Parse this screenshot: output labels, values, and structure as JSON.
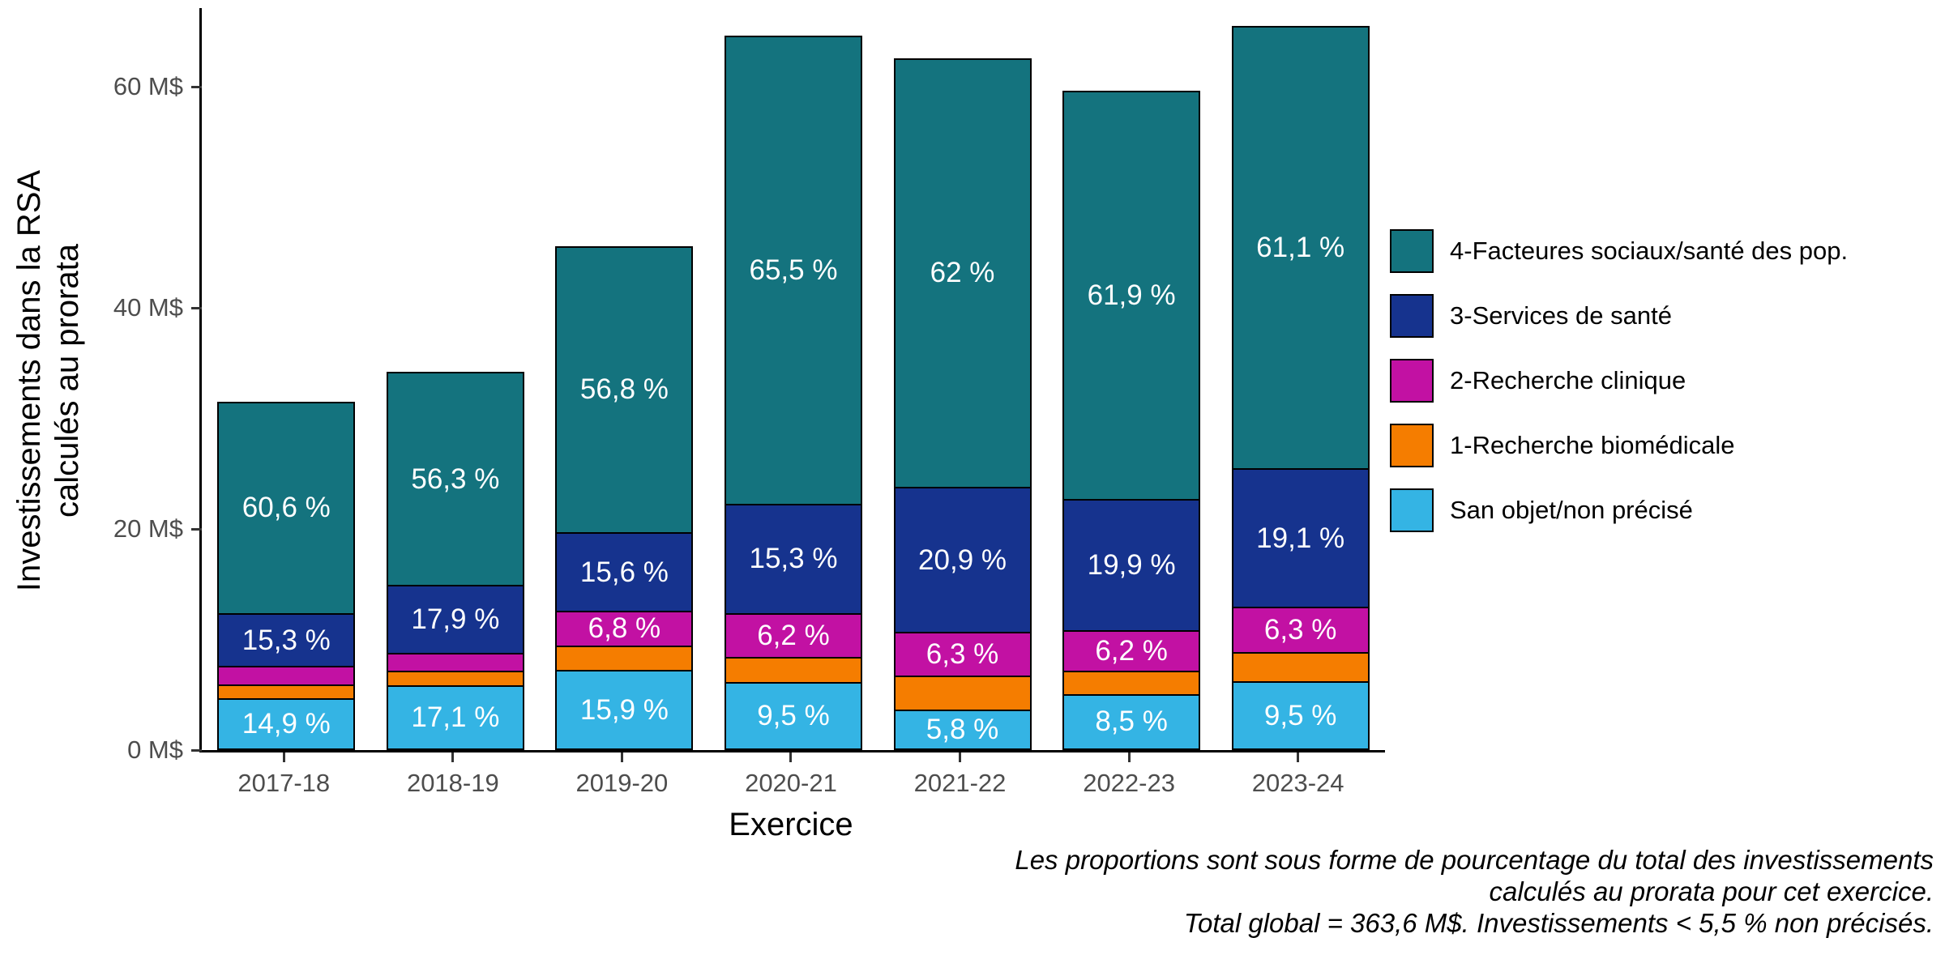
{
  "chart_data": {
    "type": "bar",
    "stacked": true,
    "title": "",
    "xlabel": "Exercice",
    "ylabel_lines": [
      "Investissements dans la RSA",
      "calculés au prorata"
    ],
    "categories": [
      "2017-18",
      "2018-19",
      "2019-20",
      "2020-21",
      "2021-22",
      "2022-23",
      "2023-24"
    ],
    "bar_totals_msd": [
      31.5,
      34.2,
      45.6,
      64.6,
      62.6,
      59.6,
      65.5
    ],
    "ylim": [
      0,
      67
    ],
    "y_ticks": [
      {
        "value": 0,
        "label": "0 M$"
      },
      {
        "value": 20,
        "label": "20 M$"
      },
      {
        "value": 40,
        "label": "40 M$"
      },
      {
        "value": 60,
        "label": "60 M$"
      }
    ],
    "legend_position": "right",
    "series": [
      {
        "name": "San objet/non précisé",
        "color": "#34B4E4",
        "percent": [
          14.9,
          17.1,
          15.9,
          9.5,
          5.8,
          8.5,
          9.5
        ],
        "labels": [
          "14,9 %",
          "17,1 %",
          "15,9 %",
          "9,5 %",
          "5,8 %",
          "8,5 %",
          "9,5 %"
        ]
      },
      {
        "name": "1-Recherche biomédicale",
        "color": "#F57D00",
        "percent": [
          4.0,
          4.0,
          4.9,
          3.5,
          5.0,
          3.5,
          4.0
        ],
        "labels": [
          null,
          null,
          null,
          null,
          null,
          null,
          null
        ]
      },
      {
        "name": "2-Recherche clinique",
        "color": "#C211A3",
        "percent": [
          5.2,
          4.7,
          6.8,
          6.2,
          6.3,
          6.2,
          6.3
        ],
        "labels": [
          null,
          null,
          "6,8 %",
          "6,2 %",
          "6,3 %",
          "6,2 %",
          "6,3 %"
        ]
      },
      {
        "name": "3-Services de santé",
        "color": "#16338E",
        "percent": [
          15.3,
          17.9,
          15.6,
          15.3,
          20.9,
          19.9,
          19.1
        ],
        "labels": [
          "15,3 %",
          "17,9 %",
          "15,6 %",
          "15,3 %",
          "20,9 %",
          "19,9 %",
          "19,1 %"
        ]
      },
      {
        "name": "4-Facteures sociaux/santé des pop.",
        "color": "#14737E",
        "percent": [
          60.6,
          56.3,
          56.8,
          65.5,
          62.0,
          61.9,
          61.1
        ],
        "labels": [
          "60,6 %",
          "56,3 %",
          "56,8 %",
          "65,5 %",
          "62 %",
          "61,9 %",
          "61,1 %"
        ]
      }
    ],
    "caption_lines": [
      "Les proportions sont sous forme de pourcentage du total des investissements",
      "calculés au prorata pour cet exercice.",
      "Total global = 363,6 M$. Investissements < 5,5 % non précisés."
    ]
  }
}
